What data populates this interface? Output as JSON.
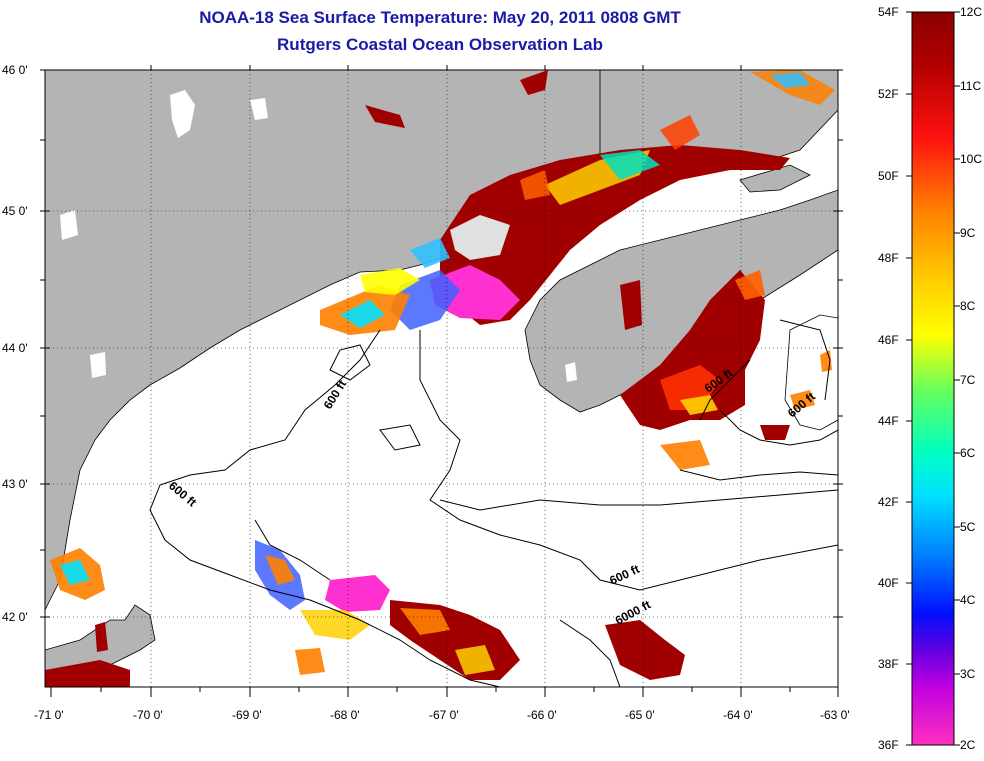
{
  "title_line1": "NOAA-18 Sea Surface Temperature:  May 20, 2011 0808 GMT",
  "title_line2": "Rutgers Coastal Ocean Observation Lab",
  "map": {
    "lat_labels": [
      "46 0'",
      "45 0'",
      "44 0'",
      "43 0'",
      "42 0'"
    ],
    "lon_labels": [
      "-71 0'",
      "-70 0'",
      "-69 0'",
      "-68 0'",
      "-67 0'",
      "-66 0'",
      "-65 0'",
      "-64 0'",
      "-63 0'"
    ],
    "contour_labels": [
      "600 ft",
      "600 ft",
      "600 ft",
      "600 ft",
      "600 ft",
      "6000 ft"
    ],
    "land_color": "#b4b4b4",
    "ocean_color": "#ffffff"
  },
  "colorbar": {
    "fahrenheit_labels": [
      "54F",
      "52F",
      "50F",
      "48F",
      "46F",
      "44F",
      "42F",
      "40F",
      "38F",
      "36F"
    ],
    "celsius_labels": [
      "12C",
      "11C",
      "10C",
      "9C",
      "8C",
      "7C",
      "6C",
      "5C",
      "4C",
      "3C",
      "2C"
    ],
    "colors": [
      "#8b0000",
      "#ff0000",
      "#ff8c00",
      "#ffff00",
      "#00ff80",
      "#00ffff",
      "#0060ff",
      "#0000ff",
      "#8000ff",
      "#ff00ff"
    ]
  }
}
